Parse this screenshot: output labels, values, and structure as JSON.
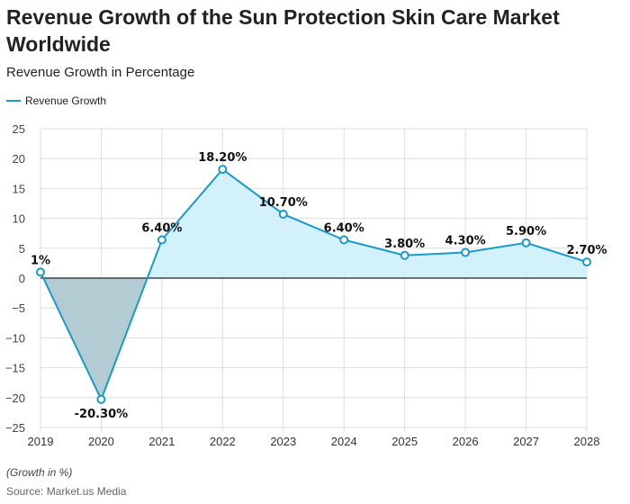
{
  "title": "Revenue Growth of the Sun Protection Skin Care Market Worldwide",
  "subtitle": "Revenue Growth in Percentage",
  "note": "(Growth in %)",
  "source": "Source: Market.us Media",
  "colors": {
    "line": "#1a9ac9",
    "positive_fill": "#d2f1fb",
    "negative_fill": "#b3cbd3"
  },
  "chart_data": {
    "type": "area",
    "categories": [
      "2019",
      "2020",
      "2021",
      "2022",
      "2023",
      "2024",
      "2025",
      "2026",
      "2027",
      "2028"
    ],
    "series": [
      {
        "name": "Revenue Growth",
        "values": [
          1,
          -20.3,
          6.4,
          18.2,
          10.7,
          6.4,
          3.8,
          4.3,
          5.9,
          2.7
        ]
      }
    ],
    "data_labels": [
      "1%",
      "-20.30%",
      "6.40%",
      "18.20%",
      "10.70%",
      "6.40%",
      "3.80%",
      "4.30%",
      "5.90%",
      "2.70%"
    ],
    "yticks": [
      "25",
      "20",
      "15",
      "10",
      "5",
      "0",
      "−5",
      "−10",
      "−15",
      "−20",
      "−25"
    ],
    "ylim": [
      -25,
      25
    ],
    "grid": true,
    "legend": "top-left"
  }
}
